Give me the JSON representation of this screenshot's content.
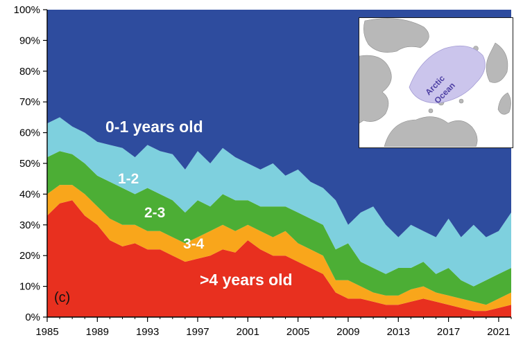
{
  "figure_label": "(c)",
  "area_labels": {
    "band_0_1": "0-1 years old",
    "band_1_2": "1-2",
    "band_2_3": "2-3",
    "band_3_4": "3-4",
    "band_gt4": ">4 years old"
  },
  "inset": {
    "label_line1": "Arctic",
    "label_line2": "Ocean"
  },
  "colors": {
    "age_0_1": "#2e4c9e",
    "age_1_2": "#7ed0de",
    "age_2_3": "#4cae35",
    "age_3_4": "#f9a61b",
    "age_gt4": "#e8301f",
    "axis": "#000000",
    "inset_land": "#b8b8b8",
    "inset_ocean_highlight": "#cbc5ec"
  },
  "chart_data": {
    "type": "area",
    "stacked": true,
    "title": "",
    "xlabel": "",
    "ylabel": "",
    "grid": false,
    "legend_position": "in-plot annotations",
    "ylim": [
      0,
      100
    ],
    "y_ticks": [
      "0%",
      "10%",
      "20%",
      "30%",
      "40%",
      "50%",
      "60%",
      "70%",
      "80%",
      "90%",
      "100%"
    ],
    "x_tick_labels": [
      "1985",
      "1989",
      "1993",
      "1997",
      "2001",
      "2005",
      "2009",
      "2013",
      "2017",
      "2021"
    ],
    "x": [
      1985,
      1986,
      1987,
      1988,
      1989,
      1990,
      1991,
      1992,
      1993,
      1994,
      1995,
      1996,
      1997,
      1998,
      1999,
      2000,
      2001,
      2002,
      2003,
      2004,
      2005,
      2006,
      2007,
      2008,
      2009,
      2010,
      2011,
      2012,
      2013,
      2014,
      2015,
      2016,
      2017,
      2018,
      2019,
      2020,
      2021,
      2022
    ],
    "series": [
      {
        "name": ">4 years old",
        "color": "#e8301f",
        "values": [
          33,
          37,
          38,
          33,
          30,
          25,
          23,
          24,
          22,
          22,
          20,
          18,
          19,
          20,
          22,
          21,
          25,
          22,
          20,
          20,
          18,
          16,
          14,
          8,
          6,
          6,
          5,
          4,
          4,
          5,
          6,
          5,
          4,
          3,
          2,
          2,
          3,
          4
        ]
      },
      {
        "name": "3-4",
        "color": "#f9a61b",
        "values": [
          7,
          6,
          5,
          7,
          6,
          7,
          7,
          6,
          6,
          6,
          6,
          6,
          7,
          8,
          8,
          7,
          5,
          6,
          6,
          8,
          6,
          6,
          6,
          4,
          6,
          4,
          3,
          3,
          3,
          4,
          4,
          3,
          3,
          3,
          3,
          2,
          3,
          4
        ]
      },
      {
        "name": "2-3",
        "color": "#4cae35",
        "values": [
          12,
          11,
          10,
          10,
          10,
          12,
          12,
          10,
          14,
          12,
          12,
          10,
          12,
          8,
          10,
          10,
          8,
          8,
          10,
          8,
          10,
          10,
          10,
          10,
          12,
          8,
          8,
          7,
          9,
          7,
          8,
          6,
          9,
          6,
          5,
          8,
          8,
          8
        ]
      },
      {
        "name": "1-2",
        "color": "#7ed0de",
        "values": [
          11,
          11,
          9,
          10,
          11,
          12,
          13,
          12,
          14,
          14,
          15,
          14,
          16,
          14,
          15,
          14,
          12,
          12,
          14,
          10,
          14,
          12,
          12,
          16,
          6,
          16,
          20,
          16,
          10,
          14,
          10,
          12,
          16,
          14,
          20,
          14,
          14,
          18
        ]
      },
      {
        "name": "0-1 years old",
        "color": "#2e4c9e",
        "values": [
          37,
          35,
          38,
          40,
          43,
          44,
          45,
          48,
          44,
          46,
          47,
          52,
          46,
          50,
          45,
          48,
          50,
          52,
          50,
          54,
          52,
          56,
          58,
          62,
          70,
          66,
          64,
          70,
          74,
          70,
          72,
          74,
          68,
          74,
          70,
          74,
          72,
          66
        ]
      }
    ]
  }
}
